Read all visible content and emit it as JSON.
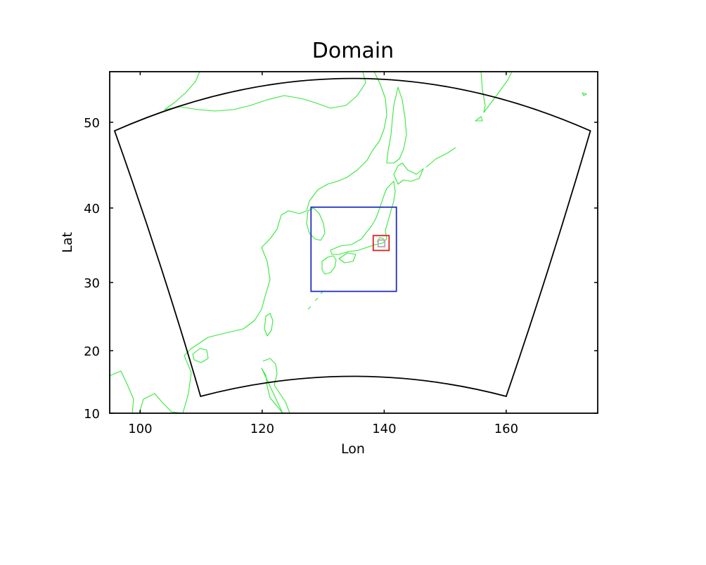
{
  "title": "Domain",
  "xlabel": "Lon",
  "ylabel": "Lat",
  "colors": {
    "coastline": "#35e83a",
    "d01": "#000000",
    "d02": "#1f2fbf",
    "d03": "#e01e1e",
    "d04": "#b8a0b8"
  },
  "chart_data": {
    "type": "map",
    "projection": "lambert-conformal",
    "xlim": [
      95,
      175
    ],
    "ylim": [
      10,
      56
    ],
    "x_ticks": [
      100,
      120,
      140,
      160
    ],
    "y_ticks": [
      10,
      20,
      30,
      40,
      50
    ],
    "x_tick_labels": [
      "100",
      "120",
      "140",
      "160"
    ],
    "y_tick_labels": [
      "10",
      "20",
      "30",
      "40",
      "50"
    ],
    "domains": [
      {
        "id": "d01",
        "corners": [
          [
            95.8,
            49.0
          ],
          [
            173.8,
            49.0
          ],
          [
            160.0,
            12.7
          ],
          [
            109.9,
            12.7
          ]
        ],
        "top_edge_peak_lat": 55.2,
        "bottom_edge_peak_lat": 15.9
      },
      {
        "id": "d02",
        "bounds": {
          "lon": [
            128.0,
            142.0
          ],
          "lat": [
            28.7,
            40.1
          ]
        }
      },
      {
        "id": "d03",
        "bounds": {
          "lon": [
            138.2,
            140.8
          ],
          "lat": [
            34.3,
            36.3
          ]
        }
      },
      {
        "id": "d04",
        "bounds": {
          "lon": [
            139.0,
            140.1
          ],
          "lat": [
            34.8,
            35.7
          ]
        }
      }
    ]
  }
}
